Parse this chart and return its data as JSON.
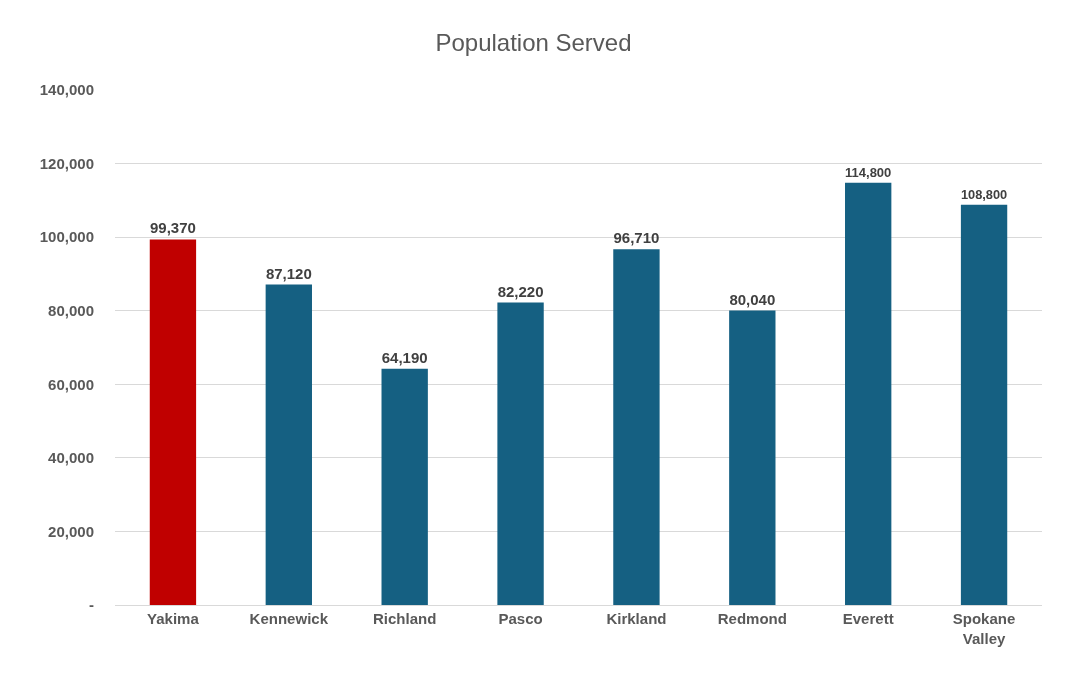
{
  "chart_data": {
    "type": "bar",
    "title": "Population Served",
    "categories": [
      "Yakima",
      "Kennewick",
      "Richland",
      "Pasco",
      "Kirkland",
      "Redmond",
      "Everett",
      "Spokane Valley"
    ],
    "values": [
      99370,
      87120,
      64190,
      82220,
      96710,
      80040,
      114800,
      108800
    ],
    "colors": [
      "#c00000",
      "#156082",
      "#156082",
      "#156082",
      "#156082",
      "#156082",
      "#156082",
      "#156082"
    ],
    "ylim": [
      0,
      140000
    ],
    "yticks": [
      {
        "value": 0,
        "label": "-"
      },
      {
        "value": 20000,
        "label": "20,000"
      },
      {
        "value": 40000,
        "label": "40,000"
      },
      {
        "value": 60000,
        "label": "60,000"
      },
      {
        "value": 80000,
        "label": "80,000"
      },
      {
        "value": 100000,
        "label": "100,000"
      },
      {
        "value": 120000,
        "label": "120,000"
      },
      {
        "value": 140000,
        "label": "140,000"
      }
    ],
    "value_labels": [
      "99,370",
      "87,120",
      "64,190",
      "82,220",
      "96,710",
      "80,040",
      "114,800",
      "108,800"
    ],
    "grid": "y"
  }
}
